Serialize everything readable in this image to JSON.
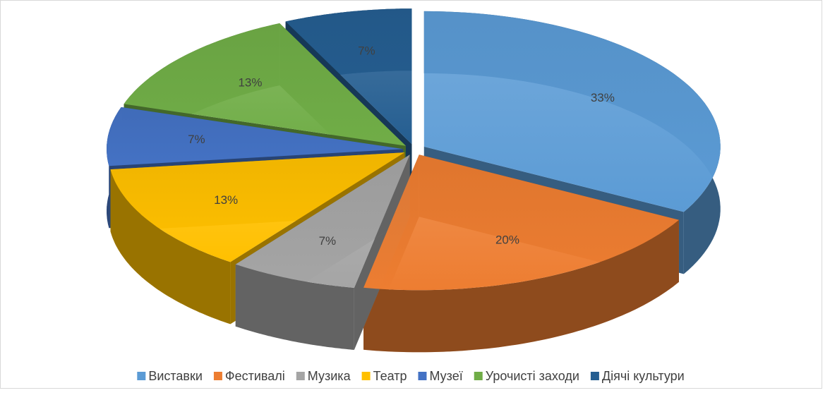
{
  "chart_data": {
    "type": "pie",
    "categories": [
      "Виставки",
      "Фестивалі",
      "Музика",
      "Театр",
      "Музеї",
      "Урочисті заходи",
      "Діячі культури"
    ],
    "values": [
      33,
      20,
      7,
      13,
      7,
      13,
      7
    ],
    "value_labels": [
      "33%",
      "20%",
      "7%",
      "13%",
      "7%",
      "13%",
      "7%"
    ],
    "colors": [
      "#5b9bd5",
      "#ed7d31",
      "#a5a5a5",
      "#ffc000",
      "#4472c4",
      "#70ad47",
      "#255e91"
    ],
    "legend": "bottom"
  }
}
